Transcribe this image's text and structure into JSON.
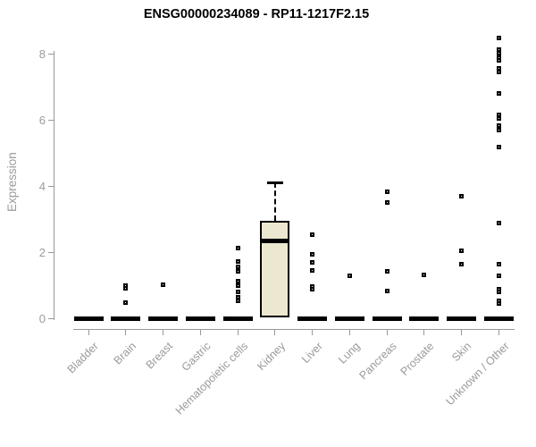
{
  "chart_data": {
    "type": "box",
    "title": "ENSG00000234089 - RP11-1217F2.15",
    "ylabel": "Expression",
    "xlabel": "",
    "ylim": [
      0,
      8.6
    ],
    "yticks": [
      0,
      2,
      4,
      6,
      8
    ],
    "grid": false,
    "legend": "none",
    "marker_shape": "open-square",
    "colors": {
      "box_fill": "#ECE7CF",
      "box_line": "#000000",
      "axis_text": "#9a9a9a",
      "axis_line": "#999999",
      "title_text": "#000000"
    },
    "categories": [
      "Bladder",
      "Brain",
      "Breast",
      "Gastric",
      "Hematopoietic cells",
      "Kidney",
      "Liver",
      "Lung",
      "Pancreas",
      "Prostate",
      "Skin",
      "Unknown / Other"
    ],
    "boxes": [
      {
        "category": "Bladder",
        "q1": 0,
        "median": 0,
        "q3": 0,
        "whisker_high": null,
        "points": []
      },
      {
        "category": "Brain",
        "q1": 0,
        "median": 0,
        "q3": 0,
        "whisker_high": null,
        "points": [
          1.0,
          0.92,
          0.48
        ]
      },
      {
        "category": "Breast",
        "q1": 0,
        "median": 0,
        "q3": 0,
        "whisker_high": null,
        "points": [
          1.02
        ]
      },
      {
        "category": "Gastric",
        "q1": 0,
        "median": 0,
        "q3": 0,
        "whisker_high": null,
        "points": []
      },
      {
        "category": "Hematopoietic cells",
        "q1": 0,
        "median": 0,
        "q3": 0,
        "whisker_high": null,
        "points": [
          2.14,
          1.73,
          1.56,
          1.44,
          1.13,
          1.0,
          0.8,
          0.66,
          0.53
        ]
      },
      {
        "category": "Kidney",
        "q1": 0.05,
        "median": 2.35,
        "q3": 2.97,
        "whisker_high": 4.12,
        "points": []
      },
      {
        "category": "Liver",
        "q1": 0,
        "median": 0,
        "q3": 0,
        "whisker_high": null,
        "points": [
          2.54,
          1.94,
          1.69,
          1.45,
          0.97,
          0.9
        ]
      },
      {
        "category": "Lung",
        "q1": 0,
        "median": 0,
        "q3": 0,
        "whisker_high": null,
        "points": [
          1.31
        ]
      },
      {
        "category": "Pancreas",
        "q1": 0,
        "median": 0,
        "q3": 0,
        "whisker_high": null,
        "points": [
          3.85,
          3.51,
          1.44,
          0.83
        ]
      },
      {
        "category": "Prostate",
        "q1": 0,
        "median": 0,
        "q3": 0,
        "whisker_high": null,
        "points": [
          1.33
        ]
      },
      {
        "category": "Skin",
        "q1": 0,
        "median": 0,
        "q3": 0,
        "whisker_high": null,
        "points": [
          3.69,
          2.05,
          1.65
        ]
      },
      {
        "category": "Unknown / Other",
        "q1": 0,
        "median": 0,
        "q3": 0,
        "whisker_high": null,
        "points": [
          8.5,
          8.13,
          8.03,
          7.9,
          7.8,
          7.57,
          7.45,
          6.8,
          6.17,
          6.05,
          5.85,
          5.7,
          5.2,
          2.9,
          1.65,
          1.3,
          0.88,
          0.8,
          0.55,
          0.45
        ]
      }
    ]
  }
}
